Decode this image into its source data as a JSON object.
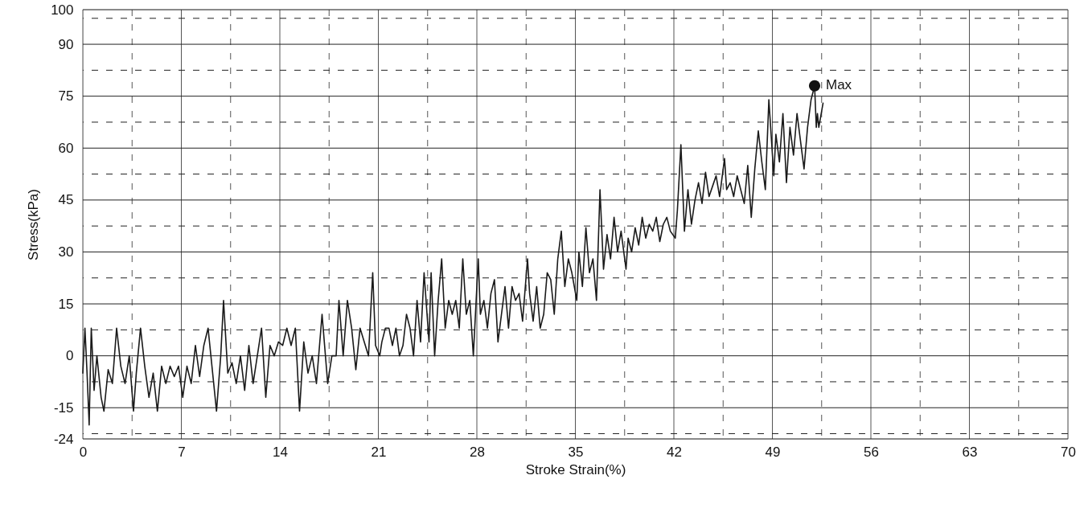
{
  "chart_data": {
    "type": "line",
    "xlabel": "Stroke Strain(%)",
    "ylabel": "Stress(kPa)",
    "xlim": [
      0,
      70
    ],
    "ylim": [
      -24,
      100
    ],
    "xticks": [
      0,
      {
        "value": 3.5,
        "label": null
      },
      7,
      {
        "value": 10.5,
        "label": null
      },
      14,
      {
        "value": 17.5,
        "label": null
      },
      21,
      {
        "value": 24.5,
        "label": null
      },
      28,
      {
        "value": 31.5,
        "label": null
      },
      35,
      {
        "value": 38.5,
        "label": null
      },
      42,
      {
        "value": 45.5,
        "label": null
      },
      49,
      {
        "value": 52.5,
        "label": null
      },
      56,
      {
        "value": 59.5,
        "label": null
      },
      63,
      {
        "value": 66.5,
        "label": null
      },
      70
    ],
    "yticks": [
      -24,
      {
        "value": -22.5,
        "label": null
      },
      -15,
      {
        "value": -7.5,
        "label": null
      },
      0,
      {
        "value": 7.5,
        "label": null
      },
      15,
      {
        "value": 22.5,
        "label": null
      },
      30,
      {
        "value": 37.5,
        "label": null
      },
      45,
      {
        "value": 52.5,
        "label": null
      },
      60,
      {
        "value": 67.5,
        "label": null
      },
      75,
      {
        "value": 82.5,
        "label": null
      },
      90,
      {
        "value": 97.5,
        "label": null
      },
      100
    ],
    "grid": true,
    "marker": "none",
    "line_style": "solid",
    "annotations": [
      {
        "text": "Max",
        "x": 52,
        "y": 78
      }
    ],
    "series": [
      {
        "color": "#1a1a1a",
        "x": [
          0,
          0.15,
          0.3,
          0.45,
          0.6,
          0.8,
          1,
          1.3,
          1.5,
          1.8,
          2.1,
          2.4,
          2.7,
          3,
          3.3,
          3.6,
          3.8,
          4.1,
          4.4,
          4.7,
          5,
          5.3,
          5.6,
          5.9,
          6.2,
          6.5,
          6.8,
          7.1,
          7.4,
          7.7,
          8,
          8.3,
          8.6,
          8.9,
          9.2,
          9.5,
          9.8,
          10,
          10.3,
          10.6,
          10.9,
          11.2,
          11.5,
          11.8,
          12.1,
          12.4,
          12.7,
          13,
          13.3,
          13.6,
          13.9,
          14.2,
          14.5,
          14.8,
          15.1,
          15.4,
          15.7,
          16,
          16.3,
          16.6,
          17,
          17.4,
          17.7,
          18,
          18.2,
          18.5,
          18.8,
          19.1,
          19.4,
          19.7,
          20,
          20.3,
          20.6,
          20.8,
          21.1,
          21.25,
          21.5,
          21.75,
          22,
          22.25,
          22.5,
          22.75,
          23,
          23.25,
          23.5,
          23.75,
          24,
          24.25,
          24.6,
          24.75,
          25,
          25.25,
          25.5,
          25.75,
          26,
          26.25,
          26.5,
          26.75,
          27,
          27.25,
          27.5,
          27.75,
          28.1,
          28.25,
          28.5,
          28.75,
          29,
          29.25,
          29.5,
          29.75,
          30,
          30.25,
          30.5,
          30.75,
          31,
          31.25,
          31.6,
          31.75,
          32,
          32.25,
          32.5,
          32.75,
          33,
          33.25,
          33.5,
          33.75,
          34,
          34.25,
          34.5,
          34.75,
          35.1,
          35.25,
          35.5,
          35.75,
          36,
          36.25,
          36.5,
          36.75,
          37,
          37.25,
          37.5,
          37.75,
          38,
          38.25,
          38.6,
          38.75,
          39,
          39.25,
          39.5,
          39.75,
          40,
          40.25,
          40.5,
          40.75,
          41,
          41.25,
          41.5,
          41.75,
          42.1,
          42.25,
          42.5,
          42.75,
          43,
          43.25,
          43.5,
          43.75,
          44,
          44.25,
          44.5,
          44.75,
          45,
          45.25,
          45.6,
          45.75,
          46,
          46.25,
          46.5,
          46.75,
          47,
          47.25,
          47.5,
          47.75,
          48,
          48.25,
          48.5,
          48.75,
          49.1,
          49.25,
          49.5,
          49.75,
          50,
          50.25,
          50.5,
          50.75,
          51,
          51.25,
          51.5,
          51.75,
          52,
          52.12,
          52.2,
          52.3,
          52.6
        ],
        "values": [
          -5,
          8,
          -5,
          -20,
          8,
          -10,
          0,
          -12,
          -16,
          -4,
          -8,
          8,
          -3,
          -8,
          0,
          -16,
          -5,
          8,
          -3,
          -12,
          -5,
          -16,
          -3,
          -8,
          -3,
          -6,
          -3,
          -12,
          -3,
          -8,
          3,
          -6,
          3,
          8,
          -4,
          -16,
          0,
          16,
          -5,
          -2,
          -8,
          0,
          -10,
          3,
          -8,
          0,
          8,
          -12,
          3,
          0,
          4,
          3,
          8,
          3,
          8,
          -16,
          4,
          -5,
          0,
          -8,
          12,
          -8,
          0,
          0,
          16,
          0,
          16,
          8,
          -4,
          8,
          4,
          0,
          24,
          3,
          0,
          4,
          8,
          8,
          3,
          8,
          0,
          3,
          12,
          8,
          0,
          16,
          4,
          24,
          4,
          24,
          0,
          16,
          28,
          8,
          16,
          12,
          16,
          8,
          28,
          12,
          16,
          0,
          28,
          12,
          16,
          8,
          18,
          22,
          4,
          12,
          20,
          8,
          20,
          16,
          18,
          10,
          28,
          18,
          10,
          20,
          8,
          12,
          24,
          22,
          12,
          28,
          36,
          20,
          28,
          24,
          16,
          30,
          20,
          37,
          24,
          28,
          16,
          48,
          25,
          35,
          28,
          40,
          30,
          36,
          25,
          34,
          30,
          37,
          32,
          40,
          34,
          38,
          36,
          40,
          33,
          38,
          40,
          36,
          34,
          42,
          61,
          36,
          48,
          38,
          45,
          50,
          44,
          53,
          46,
          49,
          52,
          46,
          57,
          48,
          50,
          46,
          52,
          48,
          44,
          55,
          40,
          54,
          65,
          56,
          48,
          74,
          52,
          64,
          56,
          70,
          50,
          66,
          58,
          70,
          62,
          54,
          66,
          74,
          78,
          66,
          70,
          66,
          73
        ]
      },
      {
        "type": "scatter",
        "marker": "circle",
        "color": "#111111",
        "x": [
          52
        ],
        "values": [
          78
        ]
      }
    ]
  }
}
